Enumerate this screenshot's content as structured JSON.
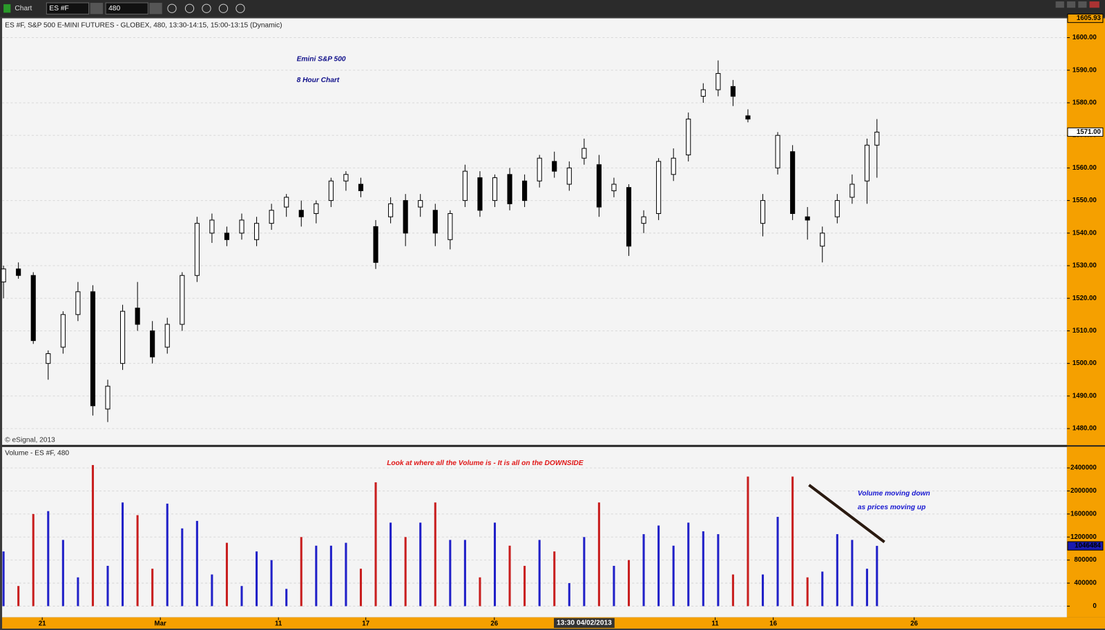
{
  "toolbar": {
    "window_title": "Chart",
    "symbol": "ES #F",
    "interval": "480"
  },
  "cursor_time": "13:30 04/02/2013",
  "chart_data": [
    {
      "type": "candlestick",
      "title": "Emini S&P 500",
      "subtitle": "8 Hour Chart",
      "header": "ES #F, S&P 500 E-MINI FUTURES - GLOBEX, 480, 13:30-14:15, 15:00-13:15 (Dynamic)",
      "source": "© eSignal, 2013",
      "x": [
        0,
        3,
        6,
        9,
        12,
        15,
        18,
        21,
        24,
        27,
        30,
        33,
        36,
        39,
        42,
        45,
        48,
        51,
        54,
        57,
        60,
        63,
        66,
        69,
        72,
        75,
        78,
        81,
        84,
        87,
        90,
        93,
        96,
        99,
        102,
        105,
        108,
        111,
        114,
        117,
        120,
        123,
        126,
        129,
        132,
        135,
        138,
        141,
        144,
        147,
        150,
        153,
        156,
        159,
        162,
        165,
        168,
        171,
        174,
        176
      ],
      "open": [
        1525,
        1529,
        1527,
        1500,
        1505,
        1515,
        1522,
        1486,
        1500,
        1517,
        1510,
        1505,
        1512,
        1527,
        1540,
        1540,
        1540,
        1538,
        1543,
        1548,
        1547,
        1546,
        1550,
        1556,
        1555,
        1542,
        1545,
        1550,
        1548,
        1547,
        1538,
        1550,
        1557,
        1550,
        1558,
        1556,
        1556,
        1562,
        1555,
        1563,
        1561,
        1553,
        1554,
        1543,
        1546,
        1558,
        1564,
        1582,
        1584,
        1585,
        1576,
        1543,
        1560,
        1565,
        1545,
        1536,
        1545,
        1551,
        1556,
        1567
      ],
      "high": [
        1530,
        1531,
        1528,
        1504,
        1516,
        1525,
        1524,
        1495,
        1518,
        1525,
        1513,
        1514,
        1528,
        1545,
        1546,
        1542,
        1546,
        1545,
        1549,
        1552,
        1550,
        1550,
        1557,
        1559,
        1557,
        1544,
        1551,
        1552,
        1552,
        1549,
        1547,
        1561,
        1559,
        1558,
        1560,
        1558,
        1564,
        1565,
        1562,
        1569,
        1564,
        1557,
        1555,
        1547,
        1563,
        1566,
        1577,
        1586,
        1593,
        1587,
        1578,
        1552,
        1571,
        1567,
        1548,
        1542,
        1552,
        1558,
        1569,
        1575
      ],
      "low": [
        1520,
        1526,
        1506,
        1495,
        1503,
        1513,
        1484,
        1482,
        1498,
        1510,
        1500,
        1503,
        1510,
        1525,
        1537,
        1536,
        1538,
        1536,
        1541,
        1545,
        1542,
        1543,
        1548,
        1553,
        1551,
        1529,
        1543,
        1536,
        1545,
        1536,
        1535,
        1548,
        1545,
        1548,
        1547,
        1548,
        1554,
        1557,
        1553,
        1561,
        1545,
        1551,
        1533,
        1540,
        1544,
        1556,
        1562,
        1580,
        1582,
        1579,
        1574,
        1539,
        1558,
        1544,
        1538,
        1531,
        1543,
        1549,
        1549,
        1557
      ],
      "close": [
        1529,
        1527,
        1507,
        1503,
        1515,
        1522,
        1487,
        1493,
        1516,
        1512,
        1502,
        1512,
        1527,
        1543,
        1544,
        1538,
        1544,
        1543,
        1547,
        1551,
        1545,
        1549,
        1556,
        1558,
        1553,
        1531,
        1549,
        1540,
        1550,
        1540,
        1546,
        1559,
        1547,
        1557,
        1549,
        1550,
        1563,
        1559,
        1560,
        1566,
        1548,
        1555,
        1536,
        1545,
        1562,
        1563,
        1575,
        1584,
        1589,
        1582,
        1575,
        1550,
        1570,
        1546,
        1544,
        1540,
        1550,
        1555,
        1567,
        1571
      ],
      "up_color": "#ffffff",
      "down_color": "#000000",
      "xlim": [
        0,
        214
      ],
      "ylim": [
        1475,
        1605.5
      ],
      "yticks": [
        {
          "value": 1480,
          "label": "1480.00"
        },
        {
          "value": 1490,
          "label": "1490.00"
        },
        {
          "value": 1500,
          "label": "1500.00"
        },
        {
          "value": 1510,
          "label": "1510.00"
        },
        {
          "value": 1520,
          "label": "1520.00"
        },
        {
          "value": 1530,
          "label": "1530.00"
        },
        {
          "value": 1540,
          "label": "1540.00"
        },
        {
          "value": 1550,
          "label": "1550.00"
        },
        {
          "value": 1560,
          "label": "1560.00"
        },
        {
          "value": 1570,
          "label": "1570.00"
        },
        {
          "value": 1580,
          "label": "1580.00"
        },
        {
          "value": 1590,
          "label": "1590.00"
        },
        {
          "value": 1600,
          "label": "1600.00"
        }
      ],
      "grid": true,
      "last_price": {
        "value": 1571,
        "label": "1571.00"
      },
      "top_price": {
        "value": 1605.93,
        "label": "1605.93"
      }
    },
    {
      "type": "bar",
      "title": "Volume - ES #F, 480",
      "annotations": [
        "Look at where all the Volume is - It is all on the DOWNSIDE",
        "Volume moving down",
        "as prices moving up"
      ],
      "x": [
        0,
        3,
        6,
        9,
        12,
        15,
        18,
        21,
        24,
        27,
        30,
        33,
        36,
        39,
        42,
        45,
        48,
        51,
        54,
        57,
        60,
        63,
        66,
        69,
        72,
        75,
        78,
        81,
        84,
        87,
        90,
        93,
        96,
        99,
        102,
        105,
        108,
        111,
        114,
        117,
        120,
        123,
        126,
        129,
        132,
        135,
        138,
        141,
        144,
        147,
        150,
        153,
        156,
        159,
        162,
        165,
        168,
        171,
        174,
        176
      ],
      "values": [
        950000,
        350000,
        1600000,
        1650000,
        1150000,
        500000,
        2450000,
        700000,
        1800000,
        1580000,
        650000,
        1780000,
        1350000,
        1480000,
        550000,
        1100000,
        350000,
        950000,
        800000,
        300000,
        1200000,
        1050000,
        1050000,
        1100000,
        650000,
        2150000,
        1450000,
        1200000,
        1450000,
        1800000,
        1150000,
        1150000,
        500000,
        1450000,
        1050000,
        700000,
        1150000,
        950000,
        400000,
        1200000,
        1800000,
        700000,
        800000,
        1250000,
        1400000,
        1050000,
        1450000,
        1300000,
        1250000,
        550000,
        2250000,
        550000,
        1550000,
        2250000,
        500000,
        600000,
        1250000,
        1150000,
        650000,
        1046484
      ],
      "up_color": "#2020c8",
      "down_color": "#c81e1e",
      "xlim": [
        0,
        214
      ],
      "ylim": [
        -194000,
        2739000
      ],
      "yticks": [
        0,
        400000,
        800000,
        1200000,
        1600000,
        2000000,
        2400000
      ],
      "xticks": [
        {
          "value": 7.8,
          "label": "21"
        },
        {
          "value": 31.6,
          "label": "Mar"
        },
        {
          "value": 55.4,
          "label": "11"
        },
        {
          "value": 73,
          "label": "17"
        },
        {
          "value": 98.9,
          "label": "26"
        },
        {
          "value": 143.4,
          "label": "11"
        },
        {
          "value": 155.1,
          "label": "16"
        },
        {
          "value": 183.5,
          "label": "26"
        }
      ],
      "grid": true,
      "last_value": 1046484
    }
  ]
}
